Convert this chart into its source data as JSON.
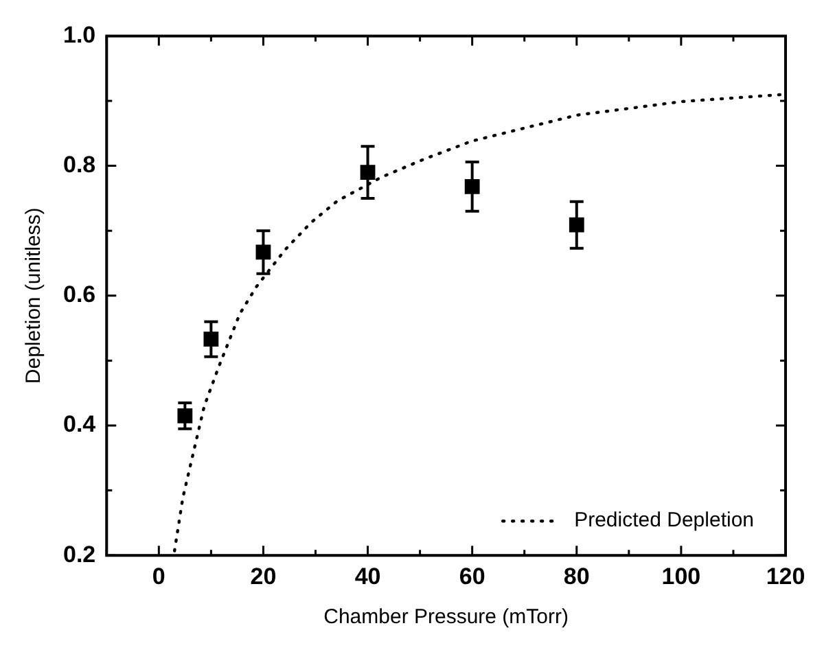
{
  "chart_data": {
    "type": "scatter",
    "xlabel": "Chamber Pressure (mTorr)",
    "ylabel": "Depletion (unitless)",
    "xlim": [
      -10,
      120
    ],
    "ylim": [
      0.2,
      1.0
    ],
    "xticks": [
      {
        "value": -10,
        "label": null
      },
      0,
      {
        "value": 10,
        "label": null
      },
      20,
      {
        "value": 30,
        "label": null
      },
      40,
      {
        "value": 50,
        "label": null
      },
      60,
      {
        "value": 70,
        "label": null
      },
      80,
      {
        "value": 90,
        "label": null
      },
      100,
      {
        "value": 110,
        "label": null
      },
      120
    ],
    "yticks": [
      0.2,
      {
        "value": 0.3,
        "label": null
      },
      0.4,
      {
        "value": 0.5,
        "label": null
      },
      0.6,
      {
        "value": 0.7,
        "label": null
      },
      0.8,
      {
        "value": 0.9,
        "label": null
      },
      {
        "value": 1.0,
        "label": "1.0"
      }
    ],
    "grid": false,
    "legend": "bottom right",
    "series": [
      {
        "type": "scatter",
        "color": "#000000",
        "marker": "square",
        "x": [
          5,
          10,
          20,
          40,
          60,
          80
        ],
        "values": [
          0.415,
          0.533,
          0.667,
          0.79,
          0.768,
          0.709
        ],
        "errors": [
          0.02,
          0.027,
          0.033,
          0.04,
          0.038,
          0.036
        ]
      },
      {
        "type": "line",
        "name": "Predicted Depletion",
        "color": "#000000",
        "marker": "none",
        "line_style": "dotted",
        "x": [
          3.0,
          4.6,
          6.4,
          8.7,
          11.4,
          15.5,
          18.7,
          24.2,
          29.2,
          34.2,
          42.5,
          50.7,
          59.9,
          80,
          100.2,
          119.7
        ],
        "values": [
          0.207,
          0.289,
          0.351,
          0.43,
          0.489,
          0.572,
          0.614,
          0.671,
          0.713,
          0.746,
          0.782,
          0.81,
          0.838,
          0.878,
          0.899,
          0.91
        ]
      }
    ]
  }
}
